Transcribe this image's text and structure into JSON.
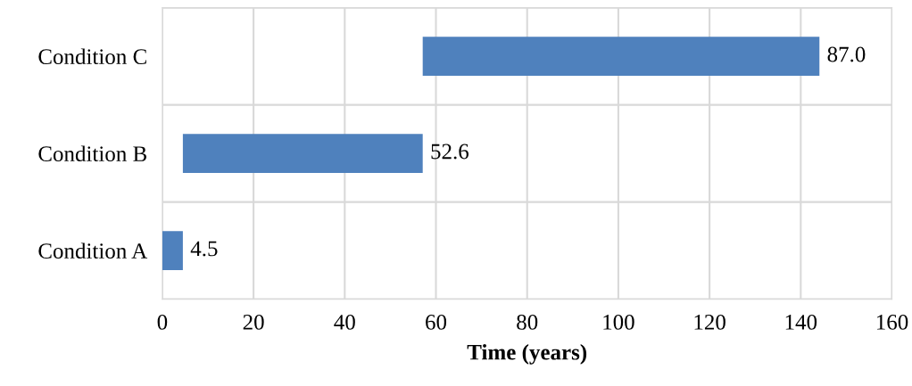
{
  "chart_data": {
    "type": "bar",
    "orientation": "horizontal",
    "xlabel": "Time (years)",
    "categories": [
      "Condition C",
      "Condition B",
      "Condition A"
    ],
    "values": [
      87.0,
      52.6,
      4.5
    ],
    "base": [
      57.1,
      4.5,
      0
    ],
    "value_labels": [
      "87.0",
      "52.6",
      "4.5"
    ],
    "color": "#4f81bd",
    "xlim": [
      0,
      160
    ],
    "xticks": [
      0,
      20,
      40,
      60,
      80,
      100,
      120,
      140,
      160
    ],
    "grid": true
  }
}
